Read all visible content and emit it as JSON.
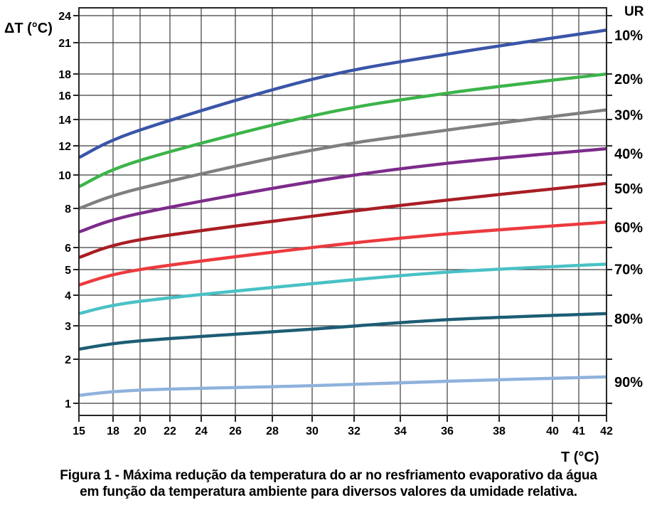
{
  "chart_data": {
    "type": "line",
    "xlabel": "T (°C)",
    "ylabel": "ΔT (°C)",
    "legend_title": "UR",
    "legend_position": "right-outside",
    "grid": true,
    "x_ticks": [
      15,
      18,
      20,
      22,
      24,
      26,
      28,
      30,
      32,
      34,
      36,
      38,
      40,
      41,
      42
    ],
    "y_ticks": [
      1,
      2,
      3,
      4,
      5,
      6,
      8,
      10,
      12,
      14,
      16,
      18,
      21,
      24
    ],
    "x_range": [
      15,
      42
    ],
    "y_range": [
      1,
      24
    ],
    "x": [
      15,
      20,
      30,
      36,
      42
    ],
    "series": [
      {
        "name": "10%",
        "color": "#3a55a8",
        "values": [
          11.2,
          13.2,
          17.5,
          19.9,
          22.4
        ]
      },
      {
        "name": "20%",
        "color": "#3cb44a",
        "values": [
          9.3,
          11.0,
          14.3,
          16.2,
          18.0
        ]
      },
      {
        "name": "30%",
        "color": "#7f7f7f",
        "values": [
          8.0,
          9.2,
          11.7,
          13.2,
          14.8
        ]
      },
      {
        "name": "40%",
        "color": "#7d2b8b",
        "values": [
          6.8,
          7.75,
          9.6,
          10.8,
          11.8
        ]
      },
      {
        "name": "50%",
        "color": "#a81e24",
        "values": [
          5.55,
          6.4,
          7.6,
          8.5,
          9.5
        ]
      },
      {
        "name": "60%",
        "color": "#ec3a3e",
        "values": [
          4.4,
          5.0,
          6.0,
          6.7,
          7.3
        ]
      },
      {
        "name": "70%",
        "color": "#49c1c6",
        "values": [
          3.4,
          3.8,
          4.45,
          4.9,
          5.25
        ]
      },
      {
        "name": "80%",
        "color": "#1d5d75",
        "values": [
          2.3,
          2.55,
          2.9,
          3.2,
          3.4
        ]
      },
      {
        "name": "90%",
        "color": "#8fb2dc",
        "values": [
          1.18,
          1.3,
          1.4,
          1.5,
          1.6
        ]
      }
    ],
    "caption_line1": "Figura 1 - Máxima redução da temperatura do ar no resfriamento evaporativo da água",
    "caption_line2": "em função da temperatura ambiente para diversos valores da umidade relativa.",
    "colors": {
      "grid": "#3d3d3d",
      "border": "#262626",
      "text": "#000000",
      "background": "#ffffff"
    }
  }
}
